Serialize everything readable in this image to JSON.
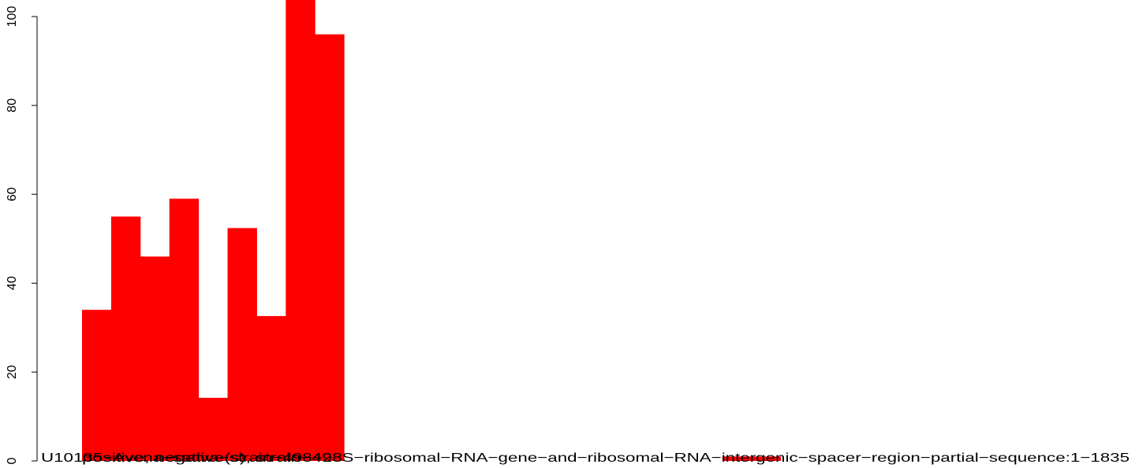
{
  "chart_data": {
    "type": "bar",
    "color": "#ff0000",
    "values": [
      34,
      55,
      46,
      59,
      14.2,
      52.4,
      32.6,
      105,
      96,
      0,
      0,
      0,
      0,
      0,
      0,
      0,
      0,
      0,
      0,
      0,
      0,
      0,
      1,
      1
    ],
    "ylim": [
      0,
      100
    ],
    "yticks": [
      0,
      20,
      40,
      60,
      80,
      100
    ],
    "annotations": [
      "U10135−Avena−sativa−strain−498−28S−ribosomal−RNA−gene−and−ribosomal−RNA−intergenic−spacer−region−partial−sequence:1−1835",
      "positive, negative(s), strain−498"
    ]
  }
}
